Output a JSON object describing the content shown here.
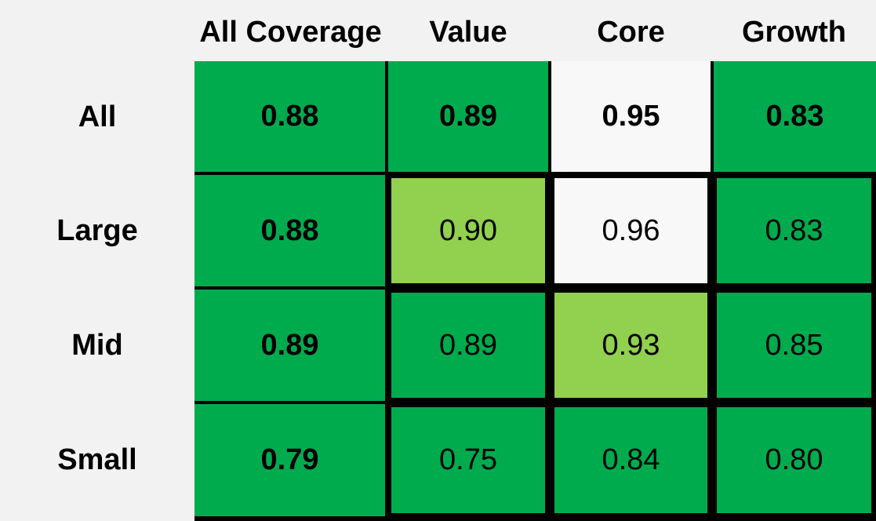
{
  "table": {
    "columns": [
      "All Coverage",
      "Value",
      "Core",
      "Growth"
    ],
    "rows": [
      {
        "label": "All",
        "cells": [
          {
            "text": "0.88",
            "color": "#00ab4e"
          },
          {
            "text": "0.89",
            "color": "#00ab4e"
          },
          {
            "text": "0.95",
            "color": "#f8f8f8"
          },
          {
            "text": "0.83",
            "color": "#00ab4e"
          }
        ]
      },
      {
        "label": "Large",
        "cells": [
          {
            "text": "0.88",
            "color": "#00ab4e"
          },
          {
            "text": "0.90",
            "color": "#92d050"
          },
          {
            "text": "0.96",
            "color": "#f8f8f8"
          },
          {
            "text": "0.83",
            "color": "#00ab4e"
          }
        ]
      },
      {
        "label": "Mid",
        "cells": [
          {
            "text": "0.89",
            "color": "#00ab4e"
          },
          {
            "text": "0.89",
            "color": "#00ab4e"
          },
          {
            "text": "0.93",
            "color": "#92d050"
          },
          {
            "text": "0.85",
            "color": "#00ab4e"
          }
        ]
      },
      {
        "label": "Small",
        "cells": [
          {
            "text": "0.79",
            "color": "#00ab4e"
          },
          {
            "text": "0.75",
            "color": "#00ab4e"
          },
          {
            "text": "0.84",
            "color": "#00ab4e"
          },
          {
            "text": "0.80",
            "color": "#00ab4e"
          }
        ]
      }
    ]
  }
}
